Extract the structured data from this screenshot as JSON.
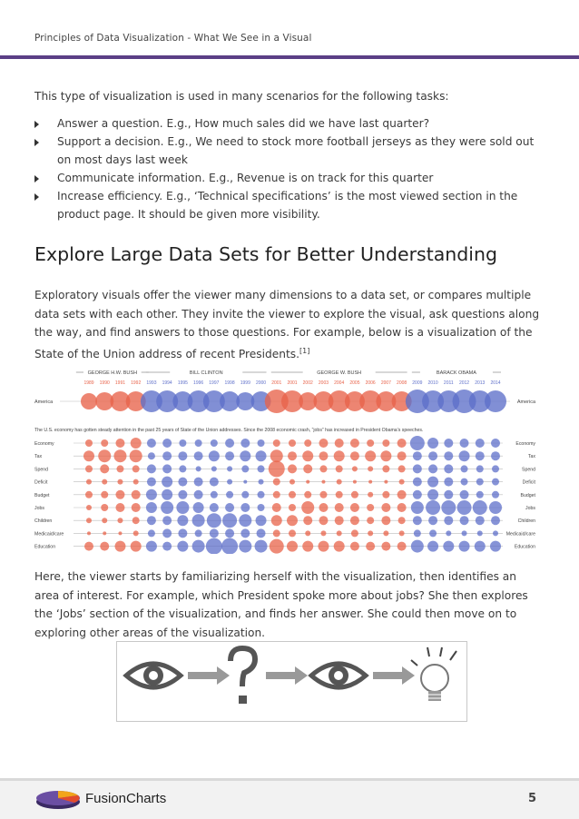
{
  "header": {
    "title": "Principles of Data Visualization - What We See in a Visual"
  },
  "intro": "This type of visualization is used in many scenarios for the following tasks:",
  "bullets": [
    "Answer a question. E.g., How much sales did we have last quarter?",
    "Support a decision. E.g., We need to stock more football jerseys as they were sold out on most days last week",
    "Communicate information. E.g., Revenue is on track for this quarter",
    "Increase efficiency. E.g., ‘Technical specifications’ is the most viewed section in the product page. It should be given more visibility."
  ],
  "section": {
    "heading": "Explore Large Data Sets for Better Understanding",
    "para1": "Exploratory visuals offer the viewer many dimensions to a data set, or compares multiple data sets with each other. They invite the viewer to explore the visual, ask questions along the way, and find answers to those questions. For example, below is a visualization of the State of the Union address of recent Presidents.",
    "footnote": "[1]",
    "para2": "Here, the viewer starts by familiarizing herself with the visualization, then identifies an area of interest. For example, which President spoke more about jobs? She then explores the ‘Jobs’ section of the visualization, and finds her answer. She could then move on to exploring other areas of the visualization."
  },
  "chart_data": {
    "type": "scatter",
    "presidents": [
      {
        "name": "GEORGE H.W. BUSH",
        "years": [
          "1989",
          "1990",
          "1991",
          "1992"
        ]
      },
      {
        "name": "BILL CLINTON",
        "years": [
          "1993",
          "1994",
          "1995",
          "1996",
          "1997",
          "1998",
          "1999",
          "2000"
        ]
      },
      {
        "name": "GEORGE W. BUSH",
        "years": [
          "2001",
          "2001",
          "2002",
          "2003",
          "2004",
          "2005",
          "2006",
          "2007",
          "2008"
        ]
      },
      {
        "name": "BARACK OBAMA",
        "years": [
          "2009",
          "2010",
          "2011",
          "2012",
          "2013",
          "2014"
        ]
      }
    ],
    "years": [
      "1989",
      "1990",
      "1991",
      "1992",
      "1993",
      "1994",
      "1995",
      "1996",
      "1997",
      "1998",
      "1999",
      "2000",
      "2001",
      "2001",
      "2002",
      "2003",
      "2004",
      "2005",
      "2006",
      "2007",
      "2008",
      "2009",
      "2010",
      "2011",
      "2012",
      "2013",
      "2014"
    ],
    "america_label": "America",
    "caption": "The U.S. economy has gotten steady attention in the past 25 years of State of the Union addresses. Since the 2008 economic crash, “jobs” has increased in President Obama’s speeches.",
    "rows": [
      "Economy",
      "Tax",
      "Spend",
      "Deficit",
      "Budget",
      "Jobs",
      "Children",
      "Medicaid/care",
      "Education"
    ],
    "colors": {
      "republican": "#e8634a",
      "democrat": "#5e6fc9"
    },
    "party": [
      "R",
      "R",
      "R",
      "R",
      "D",
      "D",
      "D",
      "D",
      "D",
      "D",
      "D",
      "D",
      "R",
      "R",
      "R",
      "R",
      "R",
      "R",
      "R",
      "R",
      "R",
      "D",
      "D",
      "D",
      "D",
      "D",
      "D"
    ],
    "america_sizes": [
      9,
      10,
      11,
      11,
      12,
      12,
      11,
      12,
      12,
      11,
      10,
      11,
      13,
      12,
      10,
      11,
      12,
      11,
      12,
      11,
      11,
      13,
      12,
      12,
      13,
      12,
      12
    ],
    "sizes": [
      [
        4,
        4,
        5,
        6,
        5,
        5,
        4,
        4,
        4,
        5,
        5,
        4,
        4,
        4,
        4,
        5,
        5,
        5,
        4,
        4,
        5,
        8,
        6,
        5,
        5,
        5,
        5
      ],
      [
        6,
        7,
        7,
        7,
        4,
        5,
        5,
        5,
        6,
        5,
        6,
        6,
        7,
        5,
        6,
        5,
        6,
        5,
        6,
        6,
        5,
        5,
        5,
        5,
        6,
        5,
        5
      ],
      [
        4,
        5,
        4,
        4,
        5,
        5,
        4,
        3,
        3,
        3,
        4,
        4,
        9,
        5,
        5,
        4,
        4,
        3,
        3,
        4,
        4,
        5,
        5,
        5,
        4,
        4,
        4
      ],
      [
        3,
        3,
        3,
        3,
        5,
        6,
        5,
        5,
        5,
        3,
        2,
        3,
        4,
        3,
        2,
        2,
        3,
        2,
        2,
        2,
        3,
        5,
        6,
        5,
        4,
        4,
        4
      ],
      [
        4,
        4,
        5,
        5,
        6,
        6,
        5,
        5,
        4,
        4,
        4,
        4,
        4,
        4,
        4,
        4,
        4,
        4,
        3,
        4,
        5,
        5,
        6,
        5,
        5,
        4,
        4
      ],
      [
        3,
        4,
        5,
        5,
        6,
        7,
        7,
        6,
        5,
        5,
        5,
        4,
        5,
        4,
        7,
        5,
        5,
        5,
        4,
        5,
        5,
        7,
        8,
        8,
        8,
        8,
        7
      ],
      [
        3,
        3,
        3,
        4,
        5,
        5,
        6,
        7,
        8,
        8,
        7,
        6,
        6,
        6,
        5,
        5,
        5,
        5,
        4,
        5,
        4,
        5,
        5,
        5,
        5,
        5,
        5
      ],
      [
        2,
        2,
        2,
        3,
        4,
        5,
        5,
        4,
        5,
        5,
        5,
        5,
        4,
        4,
        3,
        3,
        3,
        4,
        3,
        3,
        3,
        4,
        4,
        3,
        3,
        3,
        3
      ],
      [
        5,
        5,
        6,
        6,
        6,
        5,
        6,
        7,
        9,
        9,
        7,
        7,
        8,
        6,
        6,
        6,
        6,
        5,
        5,
        5,
        5,
        7,
        6,
        6,
        6,
        6,
        6
      ]
    ]
  },
  "flow": {
    "icons": [
      "eye-icon",
      "arrow-right-icon",
      "question-mark-icon",
      "arrow-right-icon",
      "eye-icon",
      "arrow-right-icon",
      "lightbulb-icon"
    ]
  },
  "footer": {
    "brand": "FusionCharts",
    "page": "5"
  }
}
